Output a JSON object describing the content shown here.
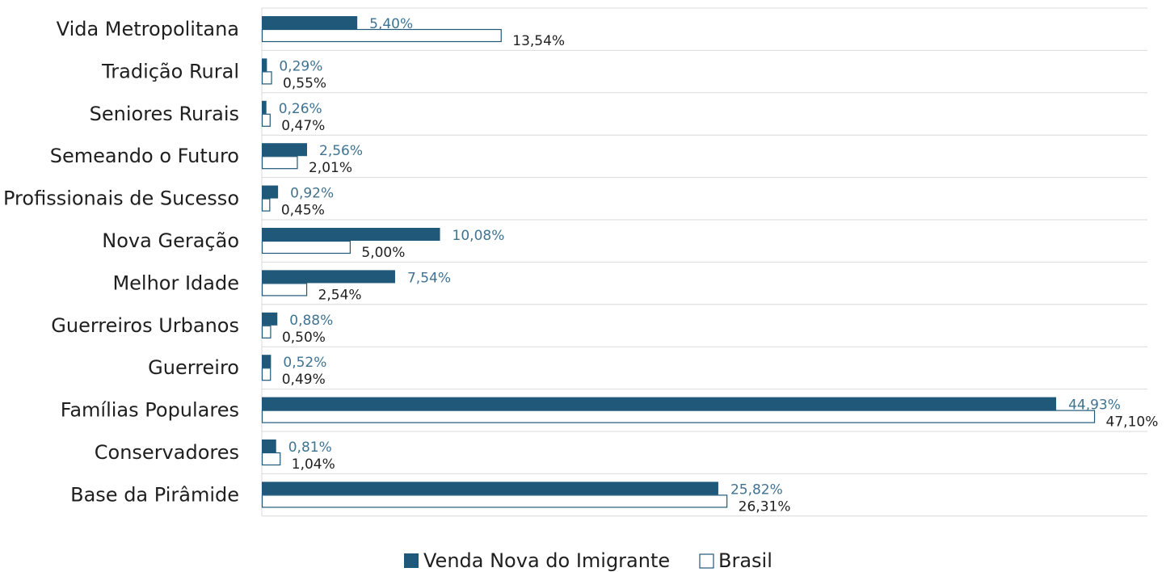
{
  "colors": {
    "series1_fill": "#1f5879",
    "series1_label": "#3f7391",
    "series2_fill": "#ffffff",
    "series2_stroke": "#1f5879",
    "series2_label": "#1f1f1f",
    "grid": "#d9d9d9"
  },
  "chart_data": {
    "type": "bar",
    "orientation": "horizontal",
    "categories": [
      "Vida Metropolitana",
      "Tradição Rural",
      "Seniores Rurais",
      "Semeando o Futuro",
      "Profissionais de Sucesso",
      "Nova Geração",
      "Melhor Idade",
      "Guerreiros Urbanos",
      "Guerreiro",
      "Famílias Populares",
      "Conservadores",
      "Base da Pirâmide"
    ],
    "series": [
      {
        "name": "Venda Nova do Imigrante",
        "values": [
          5.4,
          0.29,
          0.26,
          2.56,
          0.92,
          10.08,
          7.54,
          0.88,
          0.52,
          44.93,
          0.81,
          25.82
        ],
        "labels": [
          "5,40%",
          "0,29%",
          "0,26%",
          "2,56%",
          "0,92%",
          "10,08%",
          "7,54%",
          "0,88%",
          "0,52%",
          "44,93%",
          "0,81%",
          "25,82%"
        ]
      },
      {
        "name": "Brasil",
        "values": [
          13.54,
          0.55,
          0.47,
          2.01,
          0.45,
          5.0,
          2.54,
          0.5,
          0.49,
          47.1,
          1.04,
          26.31
        ],
        "labels": [
          "13,54%",
          "0,55%",
          "0,47%",
          "2,01%",
          "0,45%",
          "5,00%",
          "2,54%",
          "0,50%",
          "0,49%",
          "47,10%",
          "1,04%",
          "26,31%"
        ]
      }
    ],
    "legend_position": "bottom",
    "grid": true
  }
}
